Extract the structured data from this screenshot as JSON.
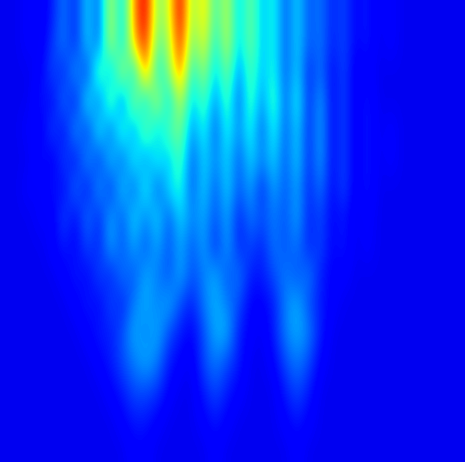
{
  "chart_data": {
    "type": "heatmap",
    "color": "jet",
    "tick_labels": false,
    "color_range": [
      0,
      1
    ],
    "cells": [
      [
        0.1,
        0.1,
        0.12,
        0.1,
        0.15,
        0.25,
        0.15,
        0.35,
        0.2,
        0.6,
        0.3,
        0.75,
        0.95,
        0.5,
        0.6,
        0.95,
        0.5,
        0.7,
        0.4,
        0.6,
        0.3,
        0.5,
        0.3,
        0.4,
        0.2,
        0.35,
        0.2,
        0.25,
        0.15,
        0.2,
        0.12,
        0.15,
        0.1,
        0.12,
        0.1,
        0.1,
        0.1,
        0.1,
        0.1,
        0.1
      ],
      [
        0.1,
        0.1,
        0.12,
        0.1,
        0.18,
        0.25,
        0.15,
        0.35,
        0.2,
        0.6,
        0.3,
        0.7,
        0.9,
        0.45,
        0.55,
        0.9,
        0.45,
        0.65,
        0.35,
        0.6,
        0.3,
        0.5,
        0.3,
        0.4,
        0.2,
        0.35,
        0.2,
        0.25,
        0.15,
        0.2,
        0.12,
        0.15,
        0.1,
        0.12,
        0.1,
        0.1,
        0.1,
        0.1,
        0.1,
        0.1
      ],
      [
        0.1,
        0.1,
        0.1,
        0.12,
        0.2,
        0.15,
        0.3,
        0.15,
        0.5,
        0.25,
        0.6,
        0.3,
        0.8,
        0.35,
        0.5,
        0.8,
        0.35,
        0.55,
        0.3,
        0.5,
        0.25,
        0.45,
        0.3,
        0.4,
        0.2,
        0.35,
        0.15,
        0.25,
        0.12,
        0.2,
        0.1,
        0.12,
        0.1,
        0.1,
        0.1,
        0.1,
        0.1,
        0.1,
        0.1,
        0.1
      ],
      [
        0.1,
        0.1,
        0.1,
        0.15,
        0.12,
        0.25,
        0.12,
        0.4,
        0.2,
        0.5,
        0.2,
        0.55,
        0.3,
        0.6,
        0.3,
        0.6,
        0.3,
        0.45,
        0.25,
        0.45,
        0.2,
        0.45,
        0.25,
        0.45,
        0.2,
        0.4,
        0.15,
        0.3,
        0.12,
        0.2,
        0.1,
        0.15,
        0.1,
        0.1,
        0.1,
        0.1,
        0.1,
        0.1,
        0.1,
        0.1
      ],
      [
        0.1,
        0.1,
        0.12,
        0.1,
        0.2,
        0.12,
        0.3,
        0.15,
        0.4,
        0.2,
        0.45,
        0.25,
        0.5,
        0.3,
        0.45,
        0.5,
        0.25,
        0.4,
        0.2,
        0.4,
        0.25,
        0.4,
        0.2,
        0.4,
        0.2,
        0.35,
        0.15,
        0.3,
        0.12,
        0.2,
        0.1,
        0.15,
        0.1,
        0.12,
        0.1,
        0.1,
        0.1,
        0.1,
        0.1,
        0.1
      ],
      [
        0.1,
        0.1,
        0.1,
        0.15,
        0.1,
        0.2,
        0.12,
        0.3,
        0.15,
        0.35,
        0.2,
        0.4,
        0.25,
        0.4,
        0.3,
        0.45,
        0.2,
        0.35,
        0.25,
        0.35,
        0.2,
        0.35,
        0.25,
        0.35,
        0.2,
        0.35,
        0.15,
        0.3,
        0.12,
        0.2,
        0.1,
        0.15,
        0.1,
        0.12,
        0.1,
        0.1,
        0.1,
        0.1,
        0.1,
        0.1
      ],
      [
        0.1,
        0.1,
        0.12,
        0.1,
        0.15,
        0.12,
        0.25,
        0.12,
        0.3,
        0.15,
        0.35,
        0.2,
        0.4,
        0.2,
        0.35,
        0.4,
        0.2,
        0.35,
        0.2,
        0.35,
        0.2,
        0.3,
        0.15,
        0.3,
        0.2,
        0.3,
        0.15,
        0.25,
        0.12,
        0.2,
        0.1,
        0.15,
        0.1,
        0.1,
        0.1,
        0.1,
        0.1,
        0.1,
        0.1,
        0.1
      ],
      [
        0.1,
        0.1,
        0.1,
        0.12,
        0.1,
        0.2,
        0.12,
        0.25,
        0.15,
        0.3,
        0.2,
        0.35,
        0.25,
        0.35,
        0.2,
        0.35,
        0.25,
        0.3,
        0.2,
        0.3,
        0.15,
        0.25,
        0.2,
        0.25,
        0.2,
        0.3,
        0.15,
        0.2,
        0.12,
        0.15,
        0.1,
        0.12,
        0.1,
        0.1,
        0.1,
        0.1,
        0.1,
        0.1,
        0.1,
        0.1
      ],
      [
        0.1,
        0.1,
        0.1,
        0.1,
        0.12,
        0.15,
        0.12,
        0.2,
        0.15,
        0.3,
        0.2,
        0.3,
        0.2,
        0.3,
        0.2,
        0.3,
        0.2,
        0.3,
        0.15,
        0.3,
        0.15,
        0.2,
        0.15,
        0.25,
        0.2,
        0.25,
        0.15,
        0.2,
        0.12,
        0.15,
        0.1,
        0.12,
        0.1,
        0.1,
        0.1,
        0.1,
        0.1,
        0.1,
        0.1,
        0.1
      ],
      [
        0.1,
        0.1,
        0.1,
        0.1,
        0.1,
        0.12,
        0.15,
        0.12,
        0.2,
        0.15,
        0.25,
        0.2,
        0.3,
        0.25,
        0.2,
        0.3,
        0.2,
        0.25,
        0.3,
        0.2,
        0.25,
        0.15,
        0.15,
        0.2,
        0.25,
        0.2,
        0.25,
        0.15,
        0.12,
        0.12,
        0.1,
        0.1,
        0.1,
        0.1,
        0.1,
        0.1,
        0.1,
        0.1,
        0.1,
        0.1
      ],
      [
        0.1,
        0.1,
        0.1,
        0.1,
        0.1,
        0.1,
        0.12,
        0.15,
        0.12,
        0.2,
        0.15,
        0.25,
        0.3,
        0.25,
        0.3,
        0.2,
        0.15,
        0.25,
        0.3,
        0.25,
        0.2,
        0.12,
        0.12,
        0.15,
        0.25,
        0.3,
        0.2,
        0.15,
        0.12,
        0.1,
        0.1,
        0.1,
        0.1,
        0.1,
        0.1,
        0.1,
        0.1,
        0.1,
        0.1,
        0.1
      ],
      [
        0.1,
        0.1,
        0.1,
        0.1,
        0.1,
        0.1,
        0.1,
        0.12,
        0.15,
        0.15,
        0.2,
        0.3,
        0.25,
        0.3,
        0.2,
        0.15,
        0.12,
        0.2,
        0.3,
        0.3,
        0.15,
        0.12,
        0.1,
        0.15,
        0.25,
        0.3,
        0.25,
        0.15,
        0.1,
        0.1,
        0.1,
        0.1,
        0.1,
        0.1,
        0.1,
        0.1,
        0.1,
        0.1,
        0.1,
        0.1
      ],
      [
        0.1,
        0.1,
        0.1,
        0.1,
        0.1,
        0.1,
        0.1,
        0.1,
        0.12,
        0.15,
        0.2,
        0.25,
        0.3,
        0.25,
        0.15,
        0.12,
        0.1,
        0.2,
        0.25,
        0.2,
        0.15,
        0.1,
        0.1,
        0.12,
        0.2,
        0.25,
        0.2,
        0.12,
        0.1,
        0.1,
        0.1,
        0.1,
        0.1,
        0.1,
        0.1,
        0.1,
        0.1,
        0.1,
        0.1,
        0.1
      ],
      [
        0.1,
        0.1,
        0.1,
        0.1,
        0.1,
        0.1,
        0.1,
        0.1,
        0.1,
        0.12,
        0.15,
        0.2,
        0.2,
        0.18,
        0.12,
        0.1,
        0.1,
        0.15,
        0.2,
        0.15,
        0.12,
        0.1,
        0.1,
        0.1,
        0.15,
        0.2,
        0.15,
        0.1,
        0.1,
        0.1,
        0.1,
        0.1,
        0.1,
        0.1,
        0.1,
        0.1,
        0.1,
        0.1,
        0.1,
        0.1
      ],
      [
        0.1,
        0.1,
        0.1,
        0.1,
        0.1,
        0.1,
        0.1,
        0.1,
        0.1,
        0.1,
        0.12,
        0.15,
        0.15,
        0.12,
        0.1,
        0.1,
        0.1,
        0.12,
        0.15,
        0.12,
        0.1,
        0.1,
        0.1,
        0.1,
        0.12,
        0.15,
        0.12,
        0.1,
        0.1,
        0.1,
        0.1,
        0.1,
        0.1,
        0.1,
        0.1,
        0.1,
        0.1,
        0.1,
        0.1,
        0.1
      ],
      [
        0.1,
        0.1,
        0.1,
        0.1,
        0.1,
        0.1,
        0.1,
        0.1,
        0.1,
        0.1,
        0.1,
        0.12,
        0.12,
        0.1,
        0.1,
        0.1,
        0.1,
        0.1,
        0.12,
        0.1,
        0.1,
        0.1,
        0.1,
        0.1,
        0.1,
        0.12,
        0.1,
        0.1,
        0.1,
        0.1,
        0.1,
        0.1,
        0.1,
        0.1,
        0.1,
        0.1,
        0.1,
        0.1,
        0.1,
        0.1
      ]
    ]
  }
}
